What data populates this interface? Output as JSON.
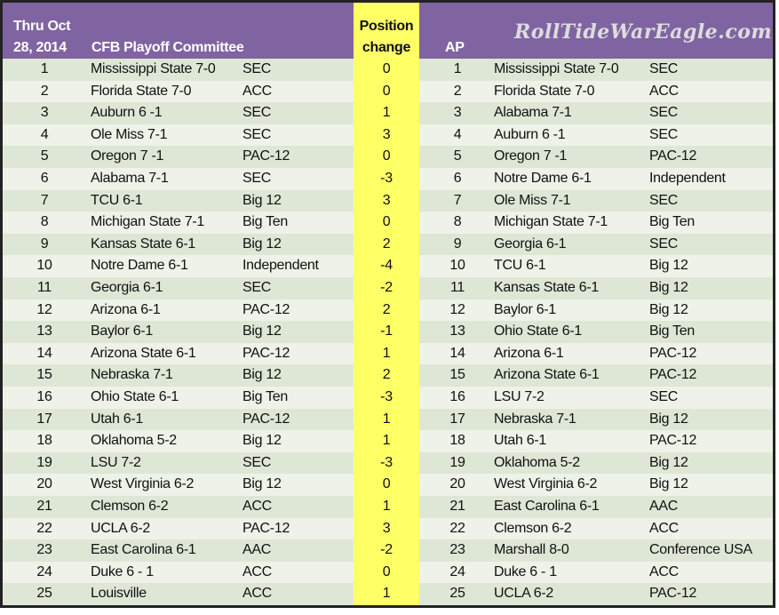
{
  "header": {
    "date_line1": "Thru Oct",
    "date_line2": "28, 2014",
    "committee": "CFB Playoff Committee",
    "change_line1": "Position",
    "change_line2": "change",
    "ap": "AP",
    "watermark": "RollTideWarEagle.com"
  },
  "colors": {
    "header": "#8064a2",
    "highlight": "#ffff66",
    "row_odd": "#dee7d6",
    "row_even": "#eef2e8"
  },
  "rows": [
    {
      "rank": "1",
      "team": "Mississippi State  7-0",
      "conf": "SEC",
      "change": "0",
      "ap_rank": "1",
      "ap_team": "Mississippi State  7-0",
      "ap_conf": "SEC"
    },
    {
      "rank": "2",
      "team": "Florida State  7-0",
      "conf": "ACC",
      "change": "0",
      "ap_rank": "2",
      "ap_team": "Florida State  7-0",
      "ap_conf": "ACC"
    },
    {
      "rank": "3",
      "team": "Auburn 6 -1",
      "conf": "SEC",
      "change": "1",
      "ap_rank": "3",
      "ap_team": "Alabama 7-1",
      "ap_conf": "SEC"
    },
    {
      "rank": "4",
      "team": "Ole Miss  7-1",
      "conf": "SEC",
      "change": "3",
      "ap_rank": "4",
      "ap_team": "Auburn 6 -1",
      "ap_conf": "SEC"
    },
    {
      "rank": "5",
      "team": "Oregon  7 -1",
      "conf": "PAC-12",
      "change": "0",
      "ap_rank": "5",
      "ap_team": "Oregon  7 -1",
      "ap_conf": "PAC-12"
    },
    {
      "rank": "6",
      "team": "Alabama 7-1",
      "conf": "SEC",
      "change": "-3",
      "ap_rank": "6",
      "ap_team": "Notre Dame 6-1",
      "ap_conf": "Independent"
    },
    {
      "rank": "7",
      "team": "TCU 6-1",
      "conf": "Big 12",
      "change": "3",
      "ap_rank": "7",
      "ap_team": "Ole Miss  7-1",
      "ap_conf": "SEC"
    },
    {
      "rank": "8",
      "team": "Michigan State 7-1",
      "conf": "Big Ten",
      "change": "0",
      "ap_rank": "8",
      "ap_team": "Michigan State 7-1",
      "ap_conf": "Big Ten"
    },
    {
      "rank": "9",
      "team": "Kansas State 6-1",
      "conf": "Big 12",
      "change": "2",
      "ap_rank": "9",
      "ap_team": "Georgia 6-1",
      "ap_conf": "SEC"
    },
    {
      "rank": "10",
      "team": "Notre Dame 6-1",
      "conf": "Independent",
      "change": "-4",
      "ap_rank": "10",
      "ap_team": "TCU 6-1",
      "ap_conf": "Big 12"
    },
    {
      "rank": "11",
      "team": "Georgia 6-1",
      "conf": "SEC",
      "change": "-2",
      "ap_rank": "11",
      "ap_team": "Kansas State 6-1",
      "ap_conf": "Big 12"
    },
    {
      "rank": "12",
      "team": "Arizona 6-1",
      "conf": "PAC-12",
      "change": "2",
      "ap_rank": "12",
      "ap_team": "Baylor 6-1",
      "ap_conf": "Big 12"
    },
    {
      "rank": "13",
      "team": "Baylor 6-1",
      "conf": "Big 12",
      "change": "-1",
      "ap_rank": "13",
      "ap_team": "Ohio State 6-1",
      "ap_conf": "Big Ten"
    },
    {
      "rank": "14",
      "team": "Arizona State 6-1",
      "conf": "PAC-12",
      "change": "1",
      "ap_rank": "14",
      "ap_team": "Arizona 6-1",
      "ap_conf": "PAC-12"
    },
    {
      "rank": "15",
      "team": "Nebraska 7-1",
      "conf": "Big 12",
      "change": "2",
      "ap_rank": "15",
      "ap_team": "Arizona State 6-1",
      "ap_conf": "PAC-12"
    },
    {
      "rank": "16",
      "team": "Ohio State 6-1",
      "conf": "Big Ten",
      "change": "-3",
      "ap_rank": "16",
      "ap_team": "LSU 7-2",
      "ap_conf": "SEC"
    },
    {
      "rank": "17",
      "team": "Utah 6-1",
      "conf": "PAC-12",
      "change": "1",
      "ap_rank": "17",
      "ap_team": "Nebraska 7-1",
      "ap_conf": "Big 12"
    },
    {
      "rank": "18",
      "team": "Oklahoma 5-2",
      "conf": "Big 12",
      "change": "1",
      "ap_rank": "18",
      "ap_team": "Utah 6-1",
      "ap_conf": "PAC-12"
    },
    {
      "rank": "19",
      "team": "LSU 7-2",
      "conf": "SEC",
      "change": "-3",
      "ap_rank": "19",
      "ap_team": "Oklahoma 5-2",
      "ap_conf": "Big 12"
    },
    {
      "rank": "20",
      "team": "West Virginia 6-2",
      "conf": "Big 12",
      "change": "0",
      "ap_rank": "20",
      "ap_team": "West Virginia 6-2",
      "ap_conf": "Big 12"
    },
    {
      "rank": "21",
      "team": "Clemson 6-2",
      "conf": "ACC",
      "change": "1",
      "ap_rank": "21",
      "ap_team": "East Carolina 6-1",
      "ap_conf": "AAC"
    },
    {
      "rank": "22",
      "team": "UCLA 6-2",
      "conf": "PAC-12",
      "change": "3",
      "ap_rank": "22",
      "ap_team": "Clemson 6-2",
      "ap_conf": "ACC"
    },
    {
      "rank": "23",
      "team": "East Carolina 6-1",
      "conf": "AAC",
      "change": "-2",
      "ap_rank": "23",
      "ap_team": "Marshall 8-0",
      "ap_conf": "Conference USA"
    },
    {
      "rank": "24",
      "team": "Duke 6 - 1",
      "conf": "ACC",
      "change": "0",
      "ap_rank": "24",
      "ap_team": "Duke 6 - 1",
      "ap_conf": "ACC"
    },
    {
      "rank": "25",
      "team": "Louisville",
      "conf": "ACC",
      "change": "1",
      "ap_rank": "25",
      "ap_team": "UCLA 6-2",
      "ap_conf": "PAC-12"
    }
  ]
}
